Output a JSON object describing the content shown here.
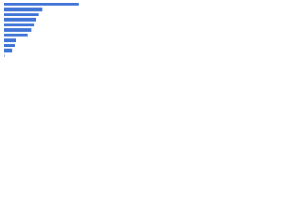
{
  "chart_data": {
    "type": "bar",
    "orientation": "horizontal",
    "categories": [
      null,
      null,
      null,
      null,
      null,
      null,
      null,
      null,
      null,
      null,
      null
    ],
    "values": [
      90,
      46,
      42,
      39,
      36,
      33,
      29,
      15,
      13,
      10,
      2
    ],
    "colors": [
      "#3f74d6",
      "#3f74d6",
      "#3f74d6",
      "#3f74d6",
      "#3f74d6",
      "#3f74d6",
      "#3f74d6",
      "#3f74d6",
      "#3f74d6",
      "#3f74d6",
      "#a9bfe6"
    ],
    "xlim": [
      0,
      100
    ]
  }
}
